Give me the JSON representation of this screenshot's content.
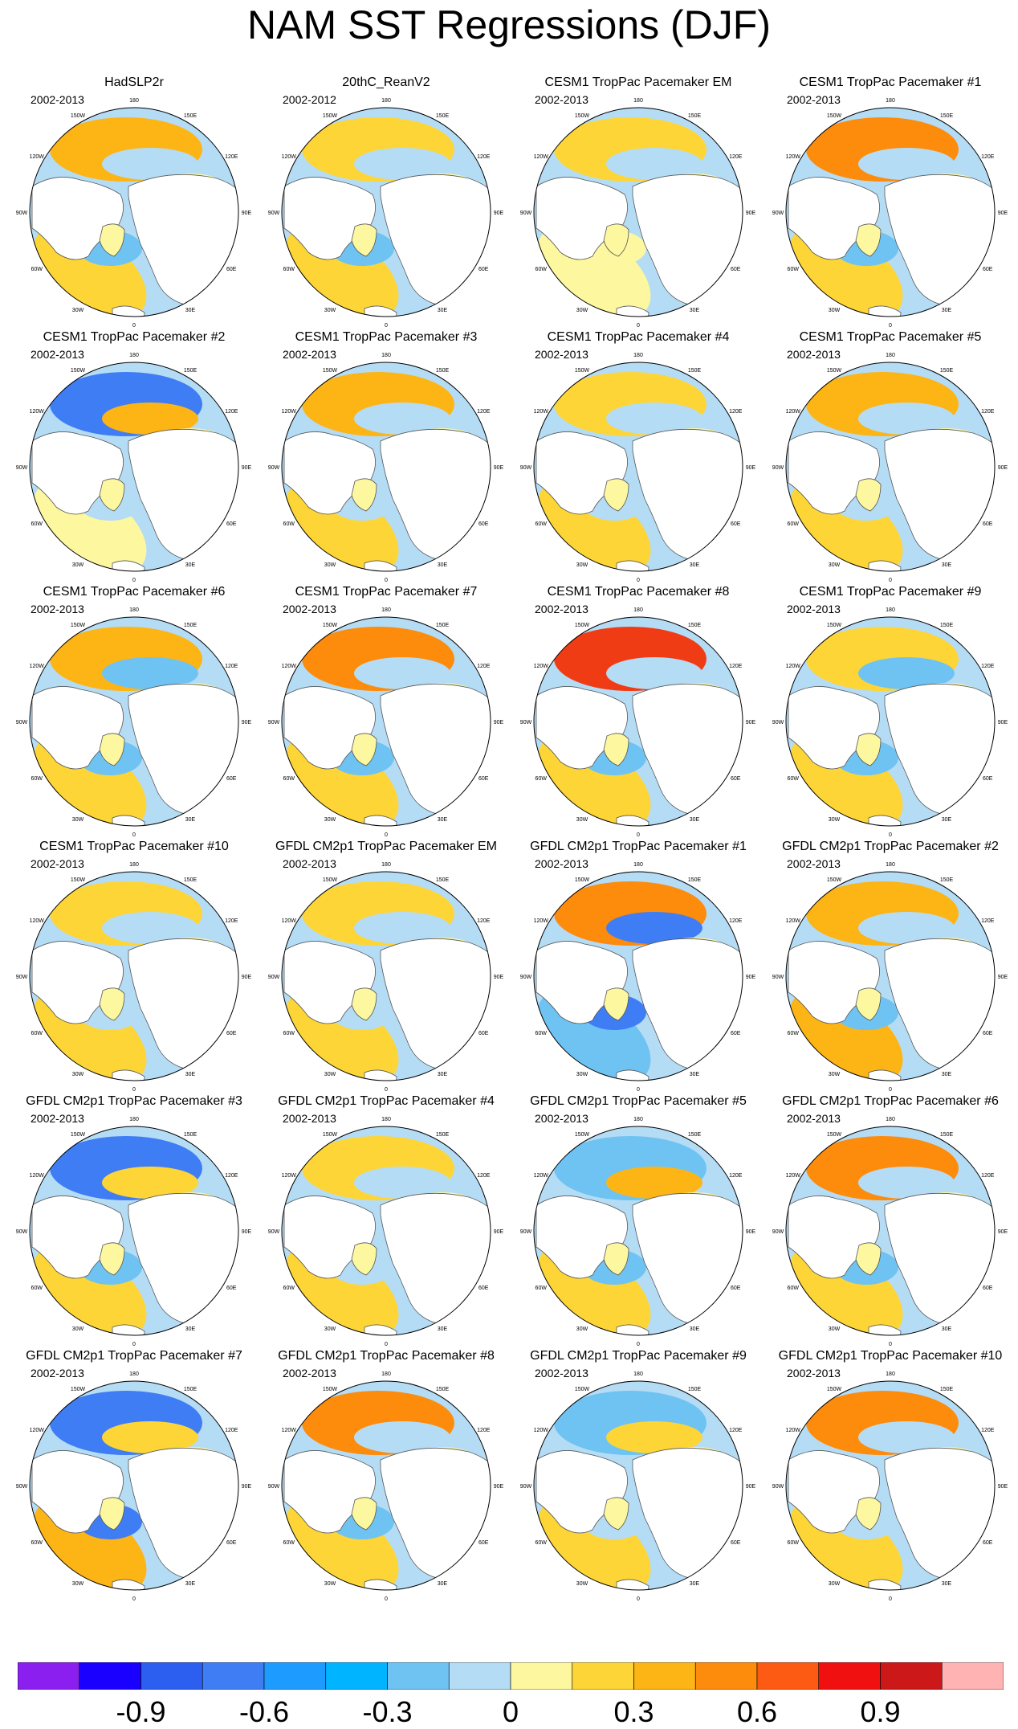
{
  "title": "NAM SST Regressions (DJF)",
  "lon_labels": [
    "180",
    "150E",
    "120E",
    "90E",
    "60E",
    "30E",
    "0",
    "30W",
    "60W",
    "90W",
    "120W",
    "150W"
  ],
  "panels": [
    {
      "title": "HadSLP2r",
      "period": "2002-2013"
    },
    {
      "title": "20thC_ReanV2",
      "period": "2002-2012"
    },
    {
      "title": "CESM1 TropPac Pacemaker EM",
      "period": "2002-2013"
    },
    {
      "title": "CESM1 TropPac Pacemaker #1",
      "period": "2002-2013"
    },
    {
      "title": "CESM1 TropPac Pacemaker #2",
      "period": "2002-2013"
    },
    {
      "title": "CESM1 TropPac Pacemaker #3",
      "period": "2002-2013"
    },
    {
      "title": "CESM1 TropPac Pacemaker #4",
      "period": "2002-2013"
    },
    {
      "title": "CESM1 TropPac Pacemaker #5",
      "period": "2002-2013"
    },
    {
      "title": "CESM1 TropPac Pacemaker #6",
      "period": "2002-2013"
    },
    {
      "title": "CESM1 TropPac Pacemaker #7",
      "period": "2002-2013"
    },
    {
      "title": "CESM1 TropPac Pacemaker #8",
      "period": "2002-2013"
    },
    {
      "title": "CESM1 TropPac Pacemaker #9",
      "period": "2002-2013"
    },
    {
      "title": "CESM1 TropPac Pacemaker #10",
      "period": "2002-2013"
    },
    {
      "title": "GFDL CM2p1 TropPac Pacemaker EM",
      "period": "2002-2013"
    },
    {
      "title": "GFDL CM2p1 TropPac Pacemaker #1",
      "period": "2002-2013"
    },
    {
      "title": "GFDL CM2p1 TropPac Pacemaker #2",
      "period": "2002-2013"
    },
    {
      "title": "GFDL CM2p1 TropPac Pacemaker #3",
      "period": "2002-2013"
    },
    {
      "title": "GFDL CM2p1 TropPac Pacemaker #4",
      "period": "2002-2013"
    },
    {
      "title": "GFDL CM2p1 TropPac Pacemaker #5",
      "period": "2002-2013"
    },
    {
      "title": "GFDL CM2p1 TropPac Pacemaker #6",
      "period": "2002-2013"
    },
    {
      "title": "GFDL CM2p1 TropPac Pacemaker #7",
      "period": "2002-2013"
    },
    {
      "title": "GFDL CM2p1 TropPac Pacemaker #8",
      "period": "2002-2013"
    },
    {
      "title": "GFDL CM2p1 TropPac Pacemaker #9",
      "period": "2002-2013"
    },
    {
      "title": "GFDL CM2p1 TropPac Pacemaker #10",
      "period": "2002-2013"
    }
  ],
  "colorbar": {
    "colors": [
      "#8a1ff0",
      "#1a00ff",
      "#2c5ef0",
      "#3f7df5",
      "#1e9bff",
      "#00b4ff",
      "#6ec3f2",
      "#b5dcf5",
      "#fdf7a0",
      "#fdd536",
      "#fdb415",
      "#fd8b0c",
      "#fd5a14",
      "#f01010",
      "#cc1818",
      "#ffb3b3"
    ],
    "tick_labels": [
      "-0.9",
      "-0.6",
      "-0.3",
      "0",
      "0.3",
      "0.6",
      "0.9"
    ]
  },
  "palette": {
    "pos1": "#fdf7a0",
    "pos2": "#fdd536",
    "pos3": "#fdb415",
    "pos4": "#fd8b0c",
    "pos5": "#f03c14",
    "neg1": "#b5dcf5",
    "neg2": "#6ec3f2",
    "neg3": "#3f7df5",
    "neg4": "#1a30e0",
    "land": "#ffffff"
  },
  "panel_fields": [
    {
      "pac": "pos3",
      "np": "neg1",
      "atl": "pos2",
      "nat": "neg2"
    },
    {
      "pac": "pos2",
      "np": "neg1",
      "atl": "pos2",
      "nat": "neg2"
    },
    {
      "pac": "pos2",
      "np": "neg1",
      "atl": "pos1",
      "nat": "pos1"
    },
    {
      "pac": "pos4",
      "np": "neg1",
      "atl": "pos2",
      "nat": "neg2"
    },
    {
      "pac": "neg3",
      "np": "pos3",
      "atl": "pos1",
      "nat": "neg1"
    },
    {
      "pac": "pos3",
      "np": "neg1",
      "atl": "pos2",
      "nat": "neg1"
    },
    {
      "pac": "pos2",
      "np": "neg1",
      "atl": "pos2",
      "nat": "neg1"
    },
    {
      "pac": "pos3",
      "np": "neg1",
      "atl": "pos2",
      "nat": "neg1"
    },
    {
      "pac": "pos3",
      "np": "neg2",
      "atl": "pos2",
      "nat": "neg2"
    },
    {
      "pac": "pos4",
      "np": "neg1",
      "atl": "pos2",
      "nat": "neg2"
    },
    {
      "pac": "pos5",
      "np": "neg1",
      "atl": "pos2",
      "nat": "neg2"
    },
    {
      "pac": "pos2",
      "np": "neg2",
      "atl": "pos2",
      "nat": "neg2"
    },
    {
      "pac": "pos2",
      "np": "neg1",
      "atl": "pos2",
      "nat": "neg1"
    },
    {
      "pac": "pos2",
      "np": "neg1",
      "atl": "pos2",
      "nat": "neg1"
    },
    {
      "pac": "pos4",
      "np": "neg3",
      "atl": "neg2",
      "nat": "neg3"
    },
    {
      "pac": "pos3",
      "np": "neg1",
      "atl": "pos3",
      "nat": "neg2"
    },
    {
      "pac": "neg3",
      "np": "pos2",
      "atl": "pos2",
      "nat": "neg2"
    },
    {
      "pac": "pos2",
      "np": "neg1",
      "atl": "pos2",
      "nat": "neg1"
    },
    {
      "pac": "neg2",
      "np": "pos3",
      "atl": "pos2",
      "nat": "neg2"
    },
    {
      "pac": "pos4",
      "np": "neg1",
      "atl": "pos2",
      "nat": "neg2"
    },
    {
      "pac": "neg3",
      "np": "pos2",
      "atl": "pos3",
      "nat": "neg3"
    },
    {
      "pac": "pos4",
      "np": "neg1",
      "atl": "pos2",
      "nat": "neg2"
    },
    {
      "pac": "neg2",
      "np": "pos2",
      "atl": "pos2",
      "nat": "neg1"
    },
    {
      "pac": "pos4",
      "np": "neg1",
      "atl": "pos2",
      "nat": "neg1"
    }
  ]
}
